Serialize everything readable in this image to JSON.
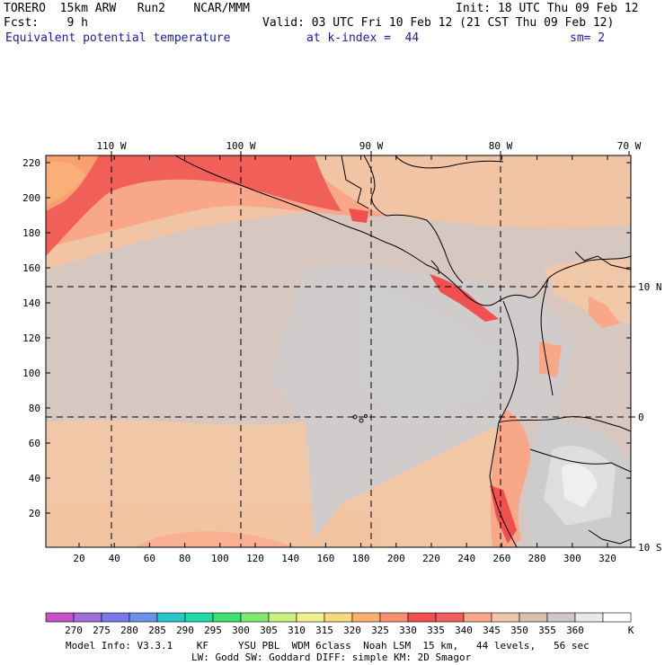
{
  "header": {
    "model": "TORERO  15km ARW   Run2    NCAR/MMM",
    "init": "Init: 18 UTC Thu 09 Feb 12",
    "fcst": "Fcst:    9 h",
    "valid": "Valid: 03 UTC Fri 10 Feb 12 (21 CST Thu 09 Feb 12)",
    "field": "Equivalent potential temperature",
    "kindex": "at k-index =  44",
    "sm": "sm= 2"
  },
  "map": {
    "lon_labels": [
      "110 W",
      "100 W",
      "90 W",
      "80 W",
      "70 W"
    ],
    "lat_labels": [
      "10 N",
      "0",
      "10 S"
    ],
    "y_ticks": [
      "20",
      "40",
      "60",
      "80",
      "100",
      "120",
      "140",
      "160",
      "180",
      "200",
      "220"
    ],
    "x_ticks": [
      "20",
      "40",
      "60",
      "80",
      "100",
      "120",
      "140",
      "160",
      "180",
      "200",
      "220",
      "240",
      "260",
      "280",
      "300",
      "320"
    ]
  },
  "colorbar": {
    "labels": [
      "270",
      "275",
      "280",
      "285",
      "290",
      "295",
      "300",
      "305",
      "310",
      "315",
      "320",
      "325",
      "330",
      "335",
      "340",
      "345",
      "350",
      "355",
      "360"
    ],
    "unit": "K",
    "colors": [
      "#c850c8",
      "#a070d8",
      "#7878e8",
      "#6a90e8",
      "#28c8c8",
      "#20d8a8",
      "#40e070",
      "#80e870",
      "#c8f080",
      "#f0f090",
      "#f8d880",
      "#f8b070",
      "#f89070",
      "#f05050",
      "#f06060",
      "#f8a888",
      "#f0c8a8",
      "#d8c0b0",
      "#d0c8c8",
      "#e8e8e8",
      "#ffffff"
    ]
  },
  "footer": {
    "line1": "Model Info: V3.3.1    KF     YSU PBL  WDM 6class  Noah LSM  15 km,   44 levels,   56 sec",
    "line2": "LW: Godd SW: Goddard DIFF: simple KM: 2D Smagor"
  }
}
